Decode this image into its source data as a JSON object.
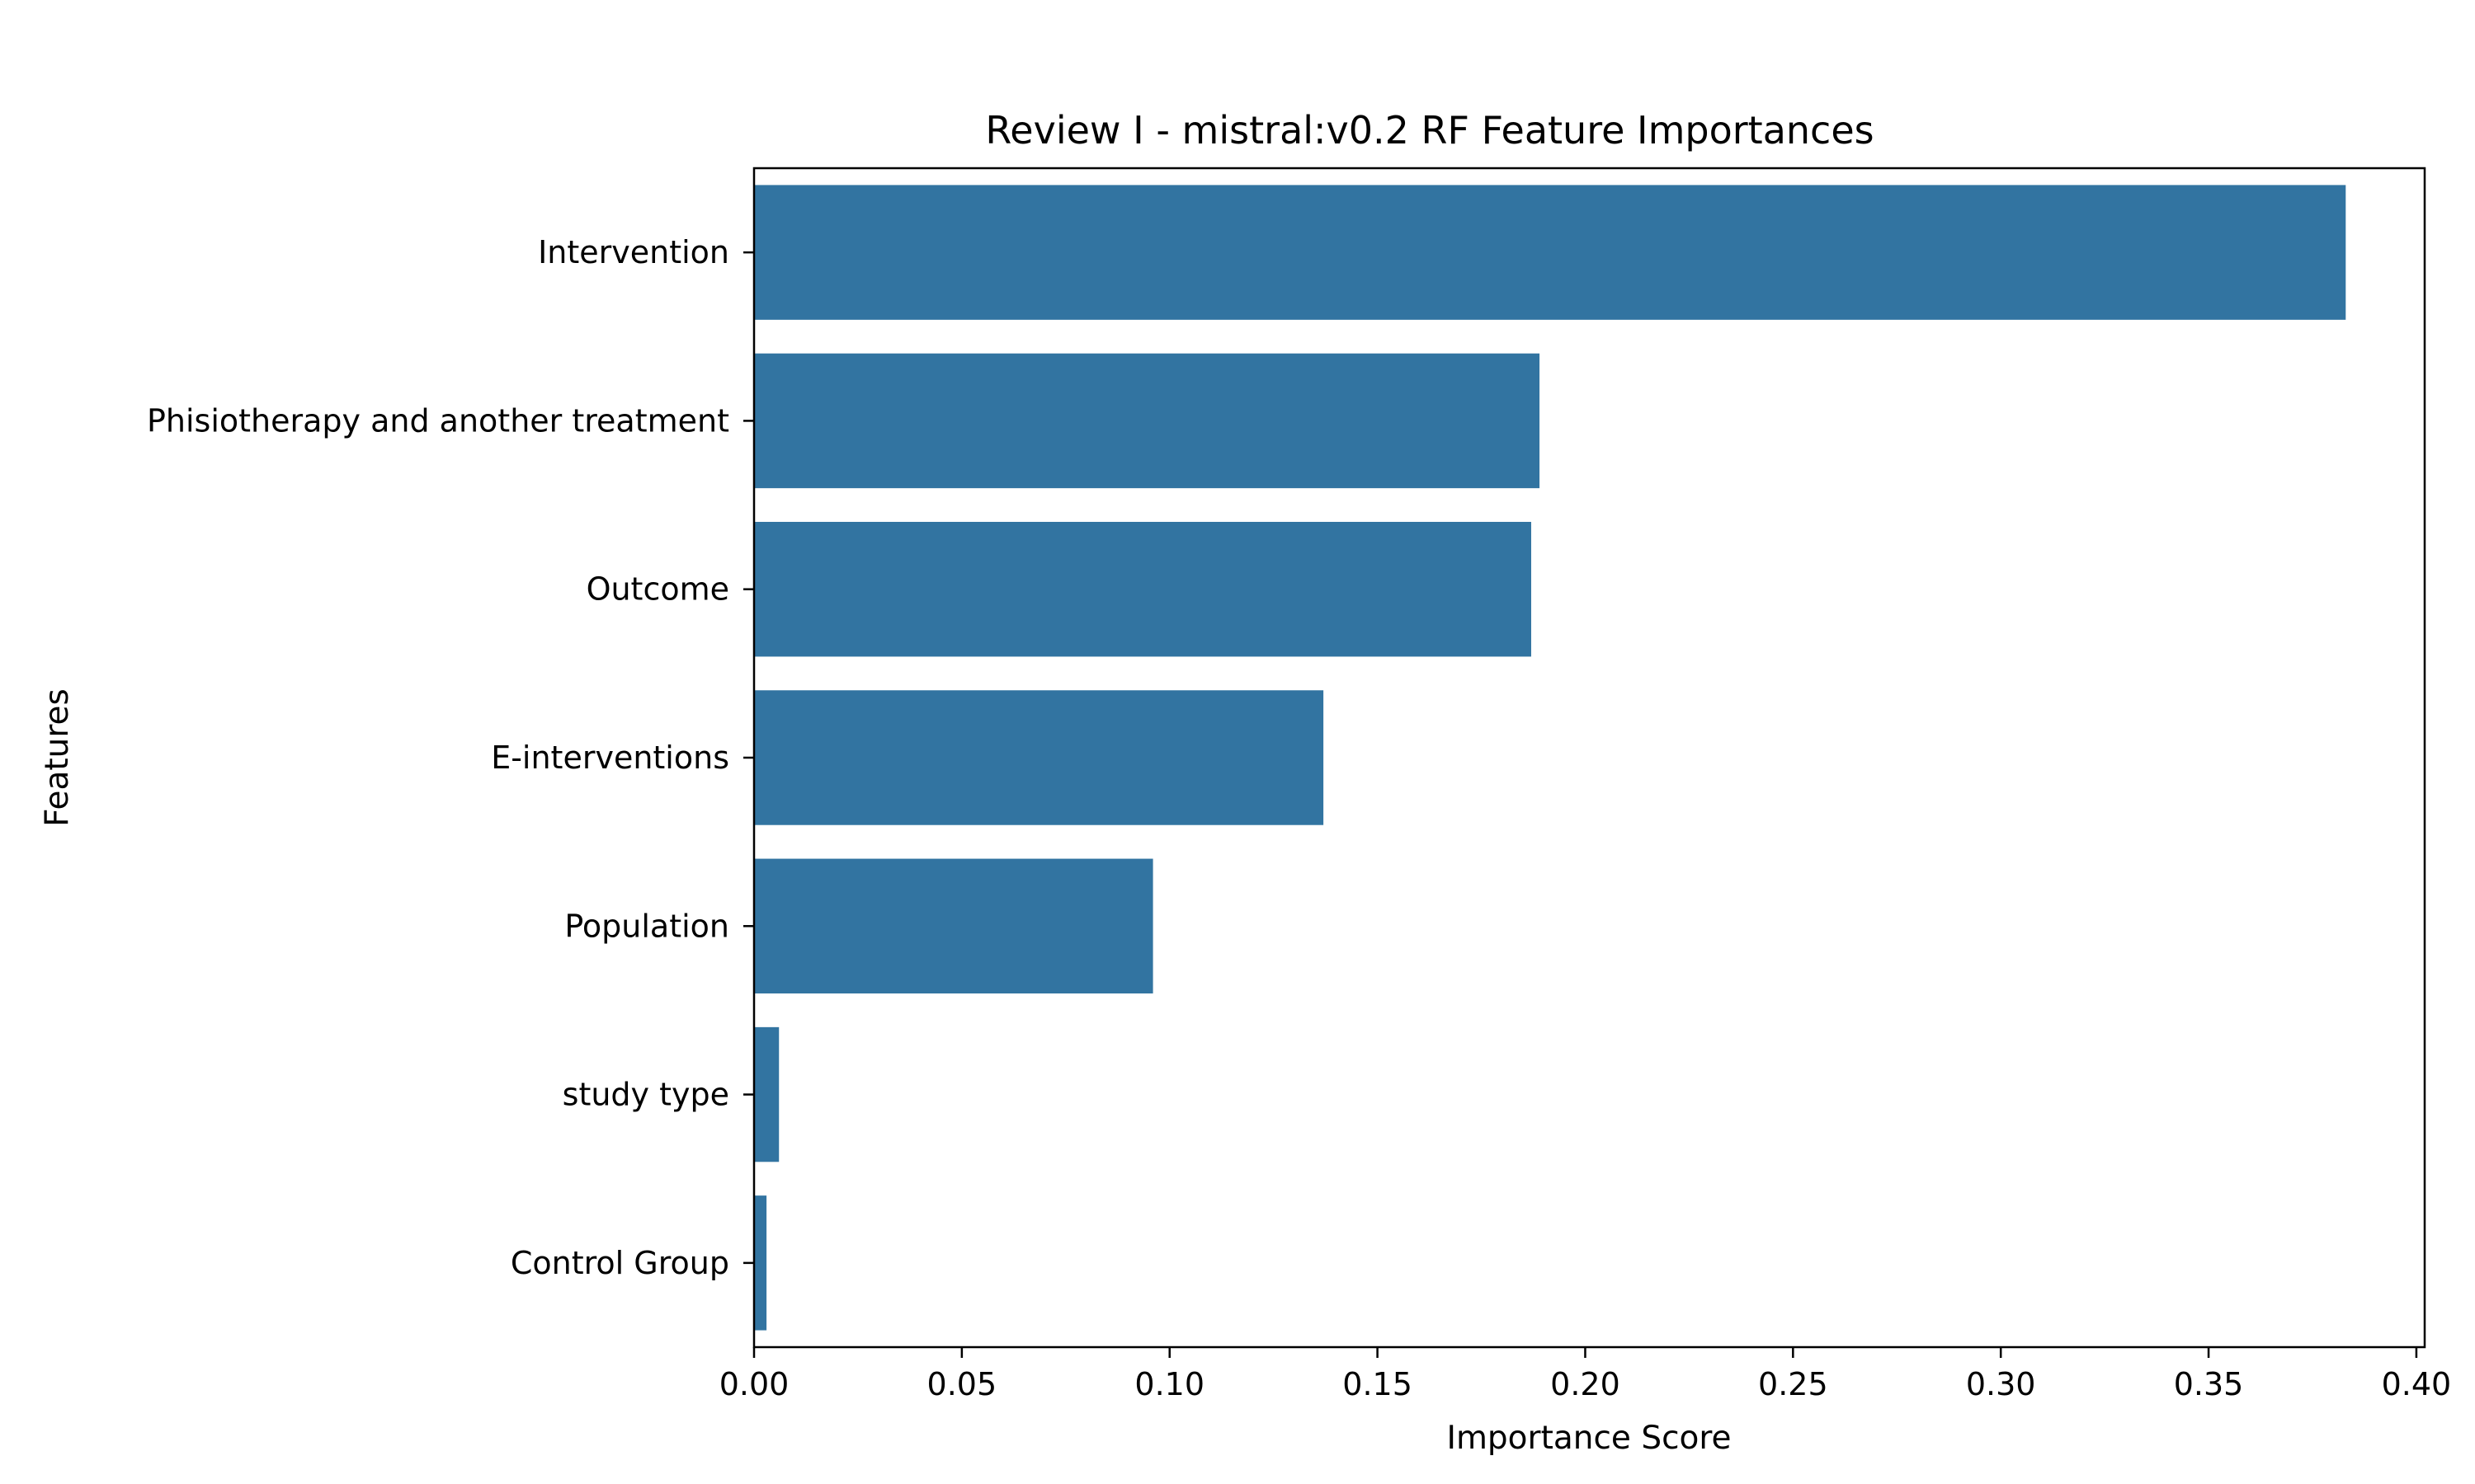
{
  "chart_data": {
    "type": "bar",
    "orientation": "horizontal",
    "title": "Review I - mistral:v0.2 RF Feature Importances",
    "xlabel": "Importance Score",
    "ylabel": "Features",
    "categories": [
      "Intervention",
      "Phisiotherapy and another treatment",
      "Outcome",
      "E-interventions",
      "Population",
      "study type",
      "Control Group"
    ],
    "values": [
      0.383,
      0.189,
      0.187,
      0.137,
      0.096,
      0.006,
      0.003
    ],
    "xlim": [
      0.0,
      0.402
    ],
    "xticks": [
      0.0,
      0.05,
      0.1,
      0.15,
      0.2,
      0.25,
      0.3,
      0.35,
      0.4
    ],
    "xtick_labels": [
      "0.00",
      "0.05",
      "0.10",
      "0.15",
      "0.20",
      "0.25",
      "0.30",
      "0.35",
      "0.40"
    ],
    "bar_color": "#3274a1",
    "grid": false,
    "legend": "none"
  }
}
